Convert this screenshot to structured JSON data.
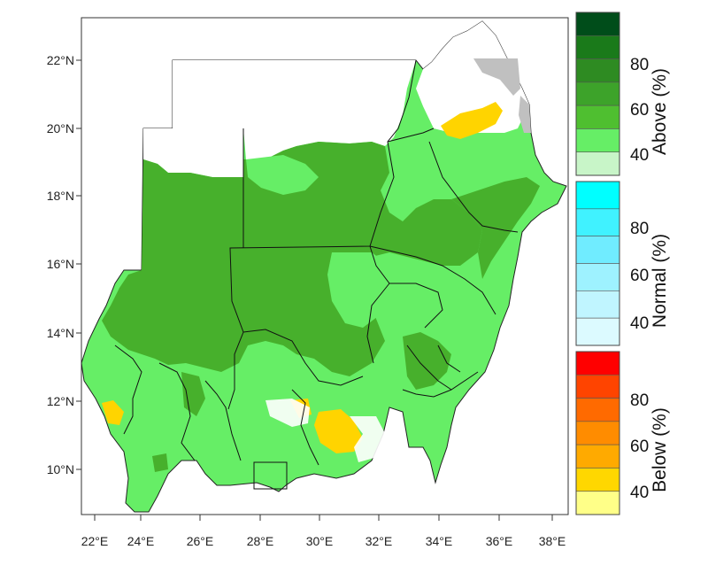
{
  "map": {
    "lon_ticks": [
      "22°E",
      "24°E",
      "26°E",
      "28°E",
      "30°E",
      "32°E",
      "34°E",
      "36°E",
      "38°E"
    ],
    "lat_ticks": [
      "22°N",
      "20°N",
      "18°N",
      "16°N",
      "14°N",
      "12°N",
      "10°N"
    ]
  },
  "legend": {
    "above": {
      "title": "Above (%)",
      "labels": [
        "80",
        "60",
        "40"
      ],
      "colors": [
        "#004d1a",
        "#1a7a1a",
        "#2e8b22",
        "#3da32a",
        "#4fbf30",
        "#66ee66",
        "#c8f5c8"
      ]
    },
    "normal": {
      "title": "Normal (%)",
      "labels": [
        "80",
        "60",
        "40"
      ],
      "colors": [
        "#00ffff",
        "#40f2ff",
        "#70ecff",
        "#9ef2ff",
        "#c0f5ff",
        "#dcfaff"
      ]
    },
    "below": {
      "title": "Below (%)",
      "labels": [
        "80",
        "60",
        "40"
      ],
      "colors": [
        "#ff0000",
        "#ff4400",
        "#ff6a00",
        "#ff8c00",
        "#ffaa00",
        "#ffd700",
        "#ffff88"
      ]
    }
  },
  "colors": {
    "above_40": "#66ee66",
    "above_50": "#47b02c",
    "below_40": "#ffd400",
    "no_data": "#c0c0c0",
    "border": "#111111"
  }
}
